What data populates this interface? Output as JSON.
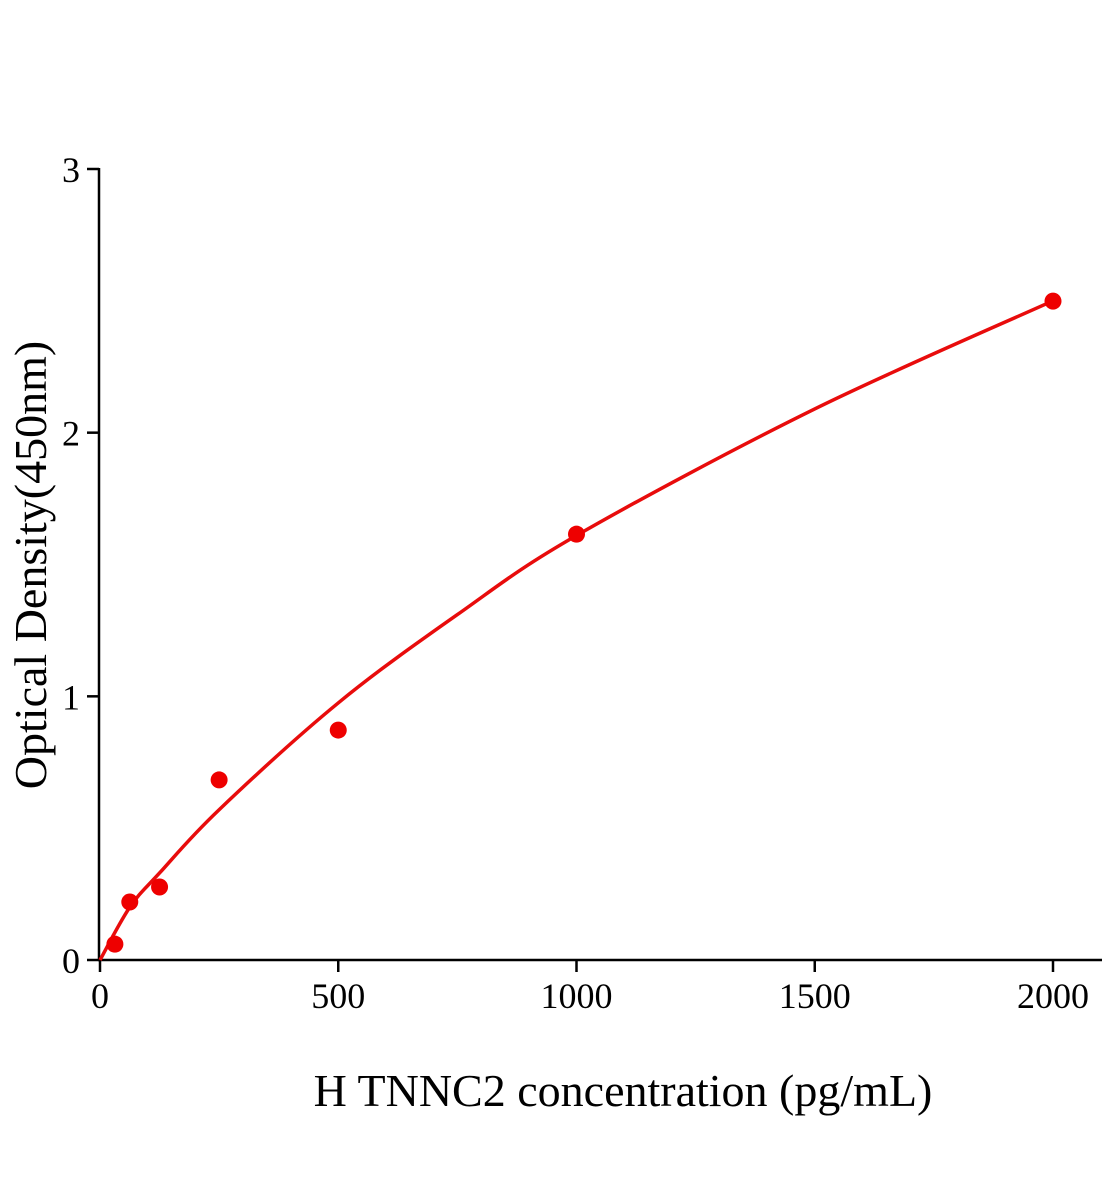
{
  "chart_data": {
    "type": "scatter",
    "title": "",
    "xlabel": "H TNNC2 concentration (pg/mL)",
    "ylabel": "Optical Density(450nm)",
    "xlim": [
      0,
      2100
    ],
    "ylim": [
      0,
      3
    ],
    "xticks": [
      0,
      500,
      1000,
      1500,
      2000
    ],
    "yticks": [
      0,
      1,
      2,
      3
    ],
    "xtick_labels": [
      "0",
      "500",
      "1000",
      "1500",
      "2000"
    ],
    "ytick_labels": [
      "0",
      "1",
      "2",
      "3"
    ],
    "grid": false,
    "legend": "none",
    "colors": {
      "points": "#ee0000",
      "curve": "#e80c0c",
      "axis": "#000000"
    },
    "points": [
      {
        "x": 31.25,
        "y": 0.06
      },
      {
        "x": 62.5,
        "y": 0.22
      },
      {
        "x": 125,
        "y": 0.277
      },
      {
        "x": 250,
        "y": 0.683
      },
      {
        "x": 500,
        "y": 0.872
      },
      {
        "x": 1000,
        "y": 1.615
      },
      {
        "x": 2000,
        "y": 2.499
      }
    ],
    "fit_curve": [
      {
        "x": 0,
        "y": 0
      },
      {
        "x": 62.5,
        "y": 0.2
      },
      {
        "x": 125,
        "y": 0.33
      },
      {
        "x": 250,
        "y": 0.57
      },
      {
        "x": 500,
        "y": 0.975
      },
      {
        "x": 750,
        "y": 1.31
      },
      {
        "x": 1000,
        "y": 1.61
      },
      {
        "x": 1500,
        "y": 2.09
      },
      {
        "x": 2000,
        "y": 2.5
      }
    ]
  }
}
